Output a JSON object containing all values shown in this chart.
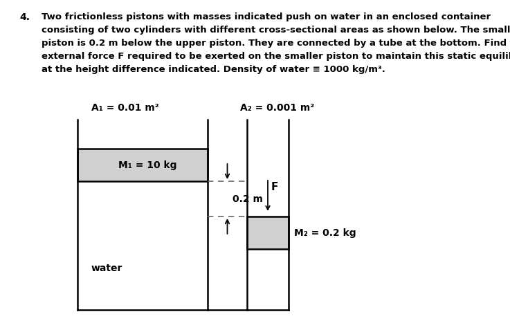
{
  "background_color": "#ffffff",
  "text_color": "#000000",
  "problem_number": "4.",
  "prob_line1": "Two frictionless pistons with masses indicated push on water in an enclosed container",
  "prob_line2": "consisting of two cylinders with different cross-sectional areas as shown below. The smaller",
  "prob_line3": "piston is 0.2 m below the upper piston. They are connected by a tube at the bottom. Find the",
  "prob_line4": "external force F required to be exerted on the smaller piston to maintain this static equilibrium",
  "prob_line5": "at the height difference indicated. Density of water ≡ 1000 kg/m³.",
  "label_A1": "A₁ = 0.01 m²",
  "label_A2": "A₂ = 0.001 m²",
  "label_M1": "M₁ = 10 kg",
  "label_M2": "M₂ = 0.2 kg",
  "label_water": "water",
  "label_02m": "0.2 m",
  "label_F": "F",
  "piston_color": "#d0d0d0",
  "line_color": "#000000",
  "dashed_color": "#666666"
}
